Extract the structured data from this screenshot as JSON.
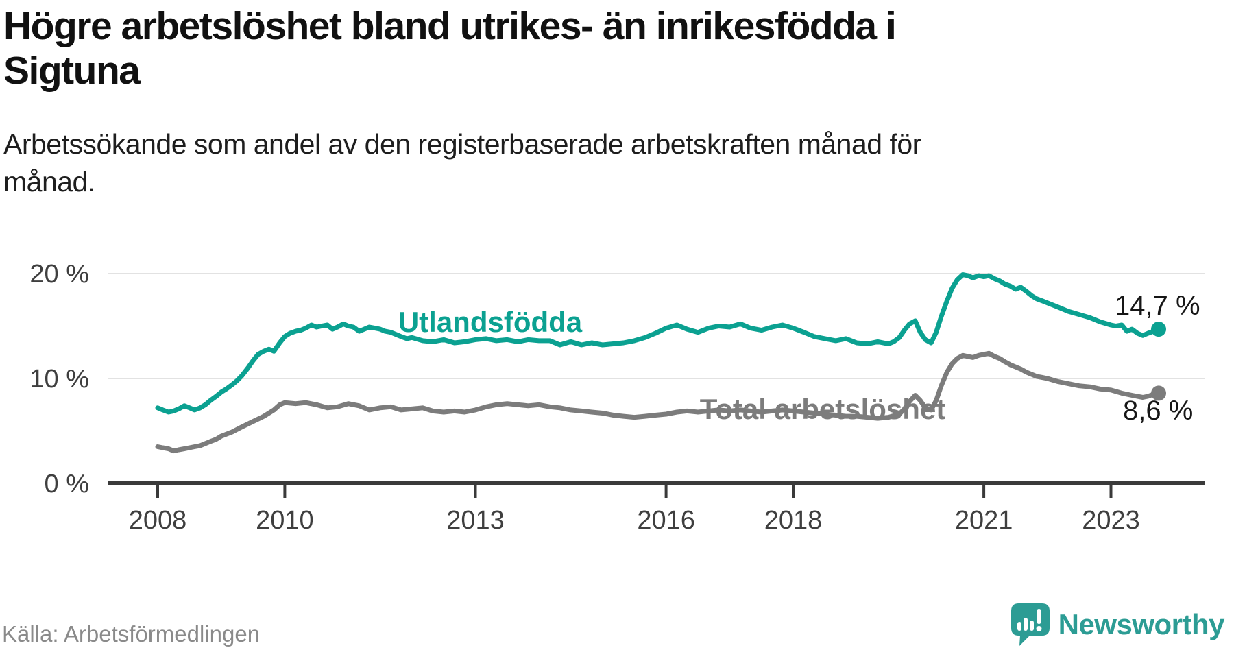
{
  "chart_data": {
    "type": "line",
    "title": "Högre arbetslöshet bland utrikes- än inrikesfödda i Sigtuna",
    "title_lines": [
      "Högre arbetslöshet bland utrikes- än inrikesfödda i",
      "Sigtuna"
    ],
    "subtitle": "Arbetssökande som andel av den registerbaserade arbetskraften månad för månad.",
    "subtitle_lines": [
      "Arbetssökande som andel av den registerbaserade arbetskraften månad för",
      "månad."
    ],
    "source": "Källa: Arbetsförmedlingen",
    "grid": true,
    "legend_position": "inline-labels",
    "y_axis": {
      "unit": "%",
      "range": [
        0,
        20
      ],
      "ticks": [
        0,
        10,
        20
      ],
      "tick_labels": [
        "0 %",
        "10 %",
        "20 %"
      ]
    },
    "x_axis": {
      "range_years": [
        2008,
        2023.75
      ],
      "ticks": [
        2008,
        2010,
        2013,
        2016,
        2018,
        2021,
        2023
      ],
      "tick_labels": [
        "2008",
        "2010",
        "2013",
        "2016",
        "2018",
        "2021",
        "2023"
      ]
    },
    "colors": {
      "utlandsfodda": "#0BA191",
      "total": "#7C7C7C",
      "gridline": "#E2E2E2",
      "axis": "#3A3A3A",
      "value_label": "#161616"
    },
    "series": [
      {
        "name": "Utlandsfödda",
        "color": "#0BA191",
        "end_value": 14.7,
        "end_label": "14,7 %",
        "points": [
          [
            2008.0,
            7.2
          ],
          [
            2008.08,
            7.0
          ],
          [
            2008.17,
            6.8
          ],
          [
            2008.25,
            6.9
          ],
          [
            2008.33,
            7.1
          ],
          [
            2008.42,
            7.4
          ],
          [
            2008.5,
            7.2
          ],
          [
            2008.58,
            7.0
          ],
          [
            2008.67,
            7.2
          ],
          [
            2008.75,
            7.5
          ],
          [
            2008.83,
            7.9
          ],
          [
            2008.92,
            8.3
          ],
          [
            2009.0,
            8.7
          ],
          [
            2009.08,
            9.0
          ],
          [
            2009.17,
            9.4
          ],
          [
            2009.25,
            9.8
          ],
          [
            2009.33,
            10.3
          ],
          [
            2009.42,
            11.0
          ],
          [
            2009.5,
            11.7
          ],
          [
            2009.58,
            12.3
          ],
          [
            2009.67,
            12.6
          ],
          [
            2009.75,
            12.8
          ],
          [
            2009.83,
            12.6
          ],
          [
            2009.92,
            13.4
          ],
          [
            2010.0,
            14.0
          ],
          [
            2010.08,
            14.3
          ],
          [
            2010.17,
            14.5
          ],
          [
            2010.25,
            14.6
          ],
          [
            2010.33,
            14.8
          ],
          [
            2010.42,
            15.1
          ],
          [
            2010.5,
            14.9
          ],
          [
            2010.58,
            15.0
          ],
          [
            2010.67,
            15.1
          ],
          [
            2010.75,
            14.7
          ],
          [
            2010.83,
            14.9
          ],
          [
            2010.92,
            15.2
          ],
          [
            2011.0,
            15.0
          ],
          [
            2011.08,
            14.9
          ],
          [
            2011.17,
            14.5
          ],
          [
            2011.25,
            14.7
          ],
          [
            2011.33,
            14.9
          ],
          [
            2011.42,
            14.8
          ],
          [
            2011.5,
            14.7
          ],
          [
            2011.58,
            14.5
          ],
          [
            2011.67,
            14.4
          ],
          [
            2011.75,
            14.2
          ],
          [
            2011.83,
            14.0
          ],
          [
            2011.92,
            13.8
          ],
          [
            2012.0,
            13.9
          ],
          [
            2012.17,
            13.6
          ],
          [
            2012.33,
            13.5
          ],
          [
            2012.5,
            13.7
          ],
          [
            2012.67,
            13.4
          ],
          [
            2012.83,
            13.5
          ],
          [
            2013.0,
            13.7
          ],
          [
            2013.17,
            13.8
          ],
          [
            2013.33,
            13.6
          ],
          [
            2013.5,
            13.7
          ],
          [
            2013.67,
            13.5
          ],
          [
            2013.83,
            13.7
          ],
          [
            2014.0,
            13.6
          ],
          [
            2014.17,
            13.6
          ],
          [
            2014.33,
            13.2
          ],
          [
            2014.5,
            13.5
          ],
          [
            2014.67,
            13.2
          ],
          [
            2014.83,
            13.4
          ],
          [
            2015.0,
            13.2
          ],
          [
            2015.17,
            13.3
          ],
          [
            2015.33,
            13.4
          ],
          [
            2015.5,
            13.6
          ],
          [
            2015.67,
            13.9
          ],
          [
            2015.83,
            14.3
          ],
          [
            2016.0,
            14.8
          ],
          [
            2016.17,
            15.1
          ],
          [
            2016.33,
            14.7
          ],
          [
            2016.5,
            14.4
          ],
          [
            2016.67,
            14.8
          ],
          [
            2016.83,
            15.0
          ],
          [
            2017.0,
            14.9
          ],
          [
            2017.17,
            15.2
          ],
          [
            2017.33,
            14.8
          ],
          [
            2017.5,
            14.6
          ],
          [
            2017.67,
            14.9
          ],
          [
            2017.83,
            15.1
          ],
          [
            2018.0,
            14.8
          ],
          [
            2018.17,
            14.4
          ],
          [
            2018.33,
            14.0
          ],
          [
            2018.5,
            13.8
          ],
          [
            2018.67,
            13.6
          ],
          [
            2018.83,
            13.8
          ],
          [
            2019.0,
            13.4
          ],
          [
            2019.17,
            13.3
          ],
          [
            2019.33,
            13.5
          ],
          [
            2019.5,
            13.3
          ],
          [
            2019.58,
            13.5
          ],
          [
            2019.67,
            13.9
          ],
          [
            2019.75,
            14.6
          ],
          [
            2019.83,
            15.2
          ],
          [
            2019.92,
            15.5
          ],
          [
            2020.0,
            14.4
          ],
          [
            2020.08,
            13.7
          ],
          [
            2020.17,
            13.4
          ],
          [
            2020.25,
            14.4
          ],
          [
            2020.33,
            15.9
          ],
          [
            2020.42,
            17.4
          ],
          [
            2020.5,
            18.6
          ],
          [
            2020.58,
            19.4
          ],
          [
            2020.67,
            19.9
          ],
          [
            2020.75,
            19.8
          ],
          [
            2020.83,
            19.6
          ],
          [
            2020.92,
            19.8
          ],
          [
            2021.0,
            19.7
          ],
          [
            2021.08,
            19.8
          ],
          [
            2021.17,
            19.5
          ],
          [
            2021.25,
            19.3
          ],
          [
            2021.33,
            19.0
          ],
          [
            2021.42,
            18.8
          ],
          [
            2021.5,
            18.5
          ],
          [
            2021.58,
            18.7
          ],
          [
            2021.67,
            18.3
          ],
          [
            2021.75,
            17.9
          ],
          [
            2021.83,
            17.6
          ],
          [
            2021.92,
            17.4
          ],
          [
            2022.0,
            17.2
          ],
          [
            2022.17,
            16.8
          ],
          [
            2022.33,
            16.4
          ],
          [
            2022.5,
            16.1
          ],
          [
            2022.67,
            15.8
          ],
          [
            2022.83,
            15.4
          ],
          [
            2023.0,
            15.1
          ],
          [
            2023.08,
            15.0
          ],
          [
            2023.17,
            15.1
          ],
          [
            2023.25,
            14.5
          ],
          [
            2023.33,
            14.7
          ],
          [
            2023.42,
            14.3
          ],
          [
            2023.5,
            14.1
          ],
          [
            2023.58,
            14.3
          ],
          [
            2023.67,
            14.5
          ],
          [
            2023.75,
            14.7
          ]
        ]
      },
      {
        "name": "Total arbetslöshet",
        "color": "#7C7C7C",
        "end_value": 8.6,
        "end_label": "8,6 %",
        "points": [
          [
            2008.0,
            3.5
          ],
          [
            2008.08,
            3.4
          ],
          [
            2008.17,
            3.3
          ],
          [
            2008.25,
            3.1
          ],
          [
            2008.33,
            3.2
          ],
          [
            2008.42,
            3.3
          ],
          [
            2008.5,
            3.4
          ],
          [
            2008.58,
            3.5
          ],
          [
            2008.67,
            3.6
          ],
          [
            2008.75,
            3.8
          ],
          [
            2008.83,
            4.0
          ],
          [
            2008.92,
            4.2
          ],
          [
            2009.0,
            4.5
          ],
          [
            2009.17,
            4.9
          ],
          [
            2009.33,
            5.4
          ],
          [
            2009.5,
            5.9
          ],
          [
            2009.67,
            6.4
          ],
          [
            2009.83,
            7.0
          ],
          [
            2009.92,
            7.5
          ],
          [
            2010.0,
            7.7
          ],
          [
            2010.17,
            7.6
          ],
          [
            2010.33,
            7.7
          ],
          [
            2010.5,
            7.5
          ],
          [
            2010.67,
            7.2
          ],
          [
            2010.83,
            7.3
          ],
          [
            2011.0,
            7.6
          ],
          [
            2011.17,
            7.4
          ],
          [
            2011.33,
            7.0
          ],
          [
            2011.5,
            7.2
          ],
          [
            2011.67,
            7.3
          ],
          [
            2011.83,
            7.0
          ],
          [
            2012.0,
            7.1
          ],
          [
            2012.17,
            7.2
          ],
          [
            2012.33,
            6.9
          ],
          [
            2012.5,
            6.8
          ],
          [
            2012.67,
            6.9
          ],
          [
            2012.83,
            6.8
          ],
          [
            2013.0,
            7.0
          ],
          [
            2013.17,
            7.3
          ],
          [
            2013.33,
            7.5
          ],
          [
            2013.5,
            7.6
          ],
          [
            2013.67,
            7.5
          ],
          [
            2013.83,
            7.4
          ],
          [
            2014.0,
            7.5
          ],
          [
            2014.17,
            7.3
          ],
          [
            2014.33,
            7.2
          ],
          [
            2014.5,
            7.0
          ],
          [
            2014.67,
            6.9
          ],
          [
            2014.83,
            6.8
          ],
          [
            2015.0,
            6.7
          ],
          [
            2015.17,
            6.5
          ],
          [
            2015.33,
            6.4
          ],
          [
            2015.5,
            6.3
          ],
          [
            2015.67,
            6.4
          ],
          [
            2015.83,
            6.5
          ],
          [
            2016.0,
            6.6
          ],
          [
            2016.17,
            6.8
          ],
          [
            2016.33,
            6.9
          ],
          [
            2016.5,
            6.8
          ],
          [
            2016.67,
            6.9
          ],
          [
            2016.83,
            7.0
          ],
          [
            2017.0,
            6.9
          ],
          [
            2017.17,
            7.0
          ],
          [
            2017.33,
            6.9
          ],
          [
            2017.5,
            6.8
          ],
          [
            2017.67,
            6.9
          ],
          [
            2017.83,
            7.0
          ],
          [
            2018.0,
            6.9
          ],
          [
            2018.17,
            6.8
          ],
          [
            2018.33,
            6.7
          ],
          [
            2018.5,
            6.6
          ],
          [
            2018.67,
            6.5
          ],
          [
            2018.83,
            6.4
          ],
          [
            2019.0,
            6.4
          ],
          [
            2019.17,
            6.3
          ],
          [
            2019.33,
            6.2
          ],
          [
            2019.5,
            6.3
          ],
          [
            2019.67,
            6.6
          ],
          [
            2019.75,
            7.1
          ],
          [
            2019.83,
            7.8
          ],
          [
            2019.92,
            8.4
          ],
          [
            2020.0,
            7.9
          ],
          [
            2020.08,
            7.2
          ],
          [
            2020.17,
            7.0
          ],
          [
            2020.25,
            7.9
          ],
          [
            2020.33,
            9.3
          ],
          [
            2020.42,
            10.6
          ],
          [
            2020.5,
            11.4
          ],
          [
            2020.58,
            11.9
          ],
          [
            2020.67,
            12.2
          ],
          [
            2020.75,
            12.1
          ],
          [
            2020.83,
            12.0
          ],
          [
            2020.92,
            12.2
          ],
          [
            2021.0,
            12.3
          ],
          [
            2021.08,
            12.4
          ],
          [
            2021.17,
            12.1
          ],
          [
            2021.25,
            11.9
          ],
          [
            2021.33,
            11.6
          ],
          [
            2021.42,
            11.3
          ],
          [
            2021.5,
            11.1
          ],
          [
            2021.58,
            10.9
          ],
          [
            2021.67,
            10.6
          ],
          [
            2021.75,
            10.4
          ],
          [
            2021.83,
            10.2
          ],
          [
            2021.92,
            10.1
          ],
          [
            2022.0,
            10.0
          ],
          [
            2022.17,
            9.7
          ],
          [
            2022.33,
            9.5
          ],
          [
            2022.5,
            9.3
          ],
          [
            2022.67,
            9.2
          ],
          [
            2022.83,
            9.0
          ],
          [
            2023.0,
            8.9
          ],
          [
            2023.17,
            8.6
          ],
          [
            2023.33,
            8.4
          ],
          [
            2023.5,
            8.2
          ],
          [
            2023.58,
            8.3
          ],
          [
            2023.67,
            8.5
          ],
          [
            2023.75,
            8.6
          ]
        ]
      }
    ]
  },
  "footer": {
    "source": "Källa: Arbetsförmedlingen",
    "brand": "Newsworthy",
    "brand_color": "#2C9C94"
  }
}
